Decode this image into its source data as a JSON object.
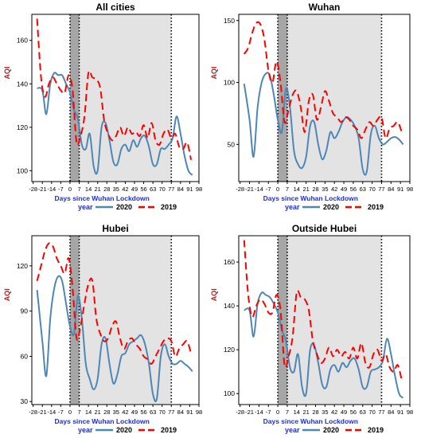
{
  "colors": {
    "series_2020": "#4e86b6",
    "series_2019": "#ff0000",
    "ylabel": "#b22222",
    "xlabel": "#1f2fd8",
    "shade_light": "#e3e3e3",
    "shade_dark": "#a6a6a6"
  },
  "legend": {
    "title": "year",
    "entries": [
      "2020",
      "2019"
    ]
  },
  "chart_data": [
    {
      "type": "line",
      "title": "All cities",
      "xlabel": "Days since  Wuhan Lockdown",
      "ylabel": "AQI",
      "xlim": [
        -29,
        98
      ],
      "ylim": [
        95,
        172
      ],
      "x_ticks": [
        -28,
        -21,
        -14,
        -7,
        0,
        7,
        14,
        21,
        28,
        35,
        42,
        49,
        56,
        63,
        70,
        77,
        84,
        91,
        98
      ],
      "y_ticks": [
        100,
        120,
        140,
        160
      ],
      "shaded_lockdown": [
        0,
        77
      ],
      "shaded_early": [
        0,
        7
      ],
      "vlines_dotted": [
        0,
        7,
        77
      ],
      "grid": false,
      "legend_position": "bottom",
      "series": [
        {
          "name": "2020",
          "x": [
            -25,
            -21,
            -18,
            -15,
            -12,
            -9,
            -6,
            -3,
            0,
            3,
            6,
            9,
            12,
            15,
            18,
            21,
            24,
            27,
            30,
            33,
            36,
            39,
            42,
            45,
            48,
            51,
            54,
            57,
            60,
            63,
            66,
            69,
            72,
            75,
            78,
            81,
            84,
            87,
            90,
            93
          ],
          "y": [
            138,
            137,
            126,
            140,
            145,
            144,
            144,
            140,
            136,
            128,
            124,
            112,
            110,
            117,
            102,
            100,
            120,
            122,
            114,
            104,
            103,
            110,
            112,
            109,
            114,
            111,
            115,
            116,
            111,
            103,
            103,
            110,
            110,
            112,
            115,
            125,
            117,
            107,
            100,
            98
          ]
        },
        {
          "name": "2019",
          "x": [
            -25,
            -22,
            -19,
            -16,
            -13,
            -10,
            -7,
            -4,
            -1,
            2,
            5,
            8,
            11,
            14,
            17,
            20,
            23,
            26,
            29,
            32,
            35,
            38,
            41,
            44,
            47,
            50,
            53,
            56,
            59,
            62,
            65,
            68,
            71,
            74,
            77,
            80,
            83,
            86,
            89,
            92
          ],
          "y": [
            170,
            143,
            134,
            140,
            143,
            140,
            137,
            136,
            144,
            137,
            113,
            116,
            125,
            145,
            143,
            142,
            138,
            123,
            117,
            114,
            116,
            120,
            116,
            120,
            117,
            118,
            116,
            121,
            115,
            122,
            114,
            112,
            117,
            119,
            115,
            117,
            111,
            110,
            113,
            105
          ]
        }
      ]
    },
    {
      "type": "line",
      "title": "Wuhan",
      "xlabel": "Days since  Wuhan Lockdown",
      "ylabel": "AQI",
      "xlim": [
        -29,
        98
      ],
      "ylim": [
        20,
        155
      ],
      "x_ticks": [
        -28,
        -21,
        -14,
        -7,
        0,
        7,
        14,
        21,
        28,
        35,
        42,
        49,
        56,
        63,
        70,
        77,
        84,
        91,
        98
      ],
      "y_ticks": [
        50,
        100,
        150
      ],
      "shaded_lockdown": [
        0,
        77
      ],
      "shaded_early": [
        0,
        7
      ],
      "vlines_dotted": [
        0,
        7,
        77
      ],
      "grid": false,
      "legend_position": "bottom",
      "series": [
        {
          "name": "2020",
          "x": [
            -25,
            -21,
            -18,
            -15,
            -12,
            -9,
            -6,
            -3,
            0,
            3,
            6,
            9,
            12,
            15,
            18,
            21,
            24,
            27,
            30,
            33,
            36,
            39,
            42,
            45,
            48,
            51,
            54,
            57,
            60,
            63,
            66,
            69,
            72,
            75,
            78,
            81,
            84,
            87,
            90,
            93
          ],
          "y": [
            99,
            70,
            40,
            80,
            100,
            107,
            106,
            90,
            70,
            60,
            95,
            80,
            45,
            34,
            31,
            40,
            65,
            68,
            50,
            38,
            45,
            60,
            55,
            60,
            68,
            72,
            70,
            65,
            55,
            30,
            28,
            58,
            65,
            55,
            50,
            52,
            55,
            56,
            54,
            50
          ]
        },
        {
          "name": "2019",
          "x": [
            -25,
            -22,
            -19,
            -16,
            -13,
            -10,
            -7,
            -4,
            -1,
            2,
            5,
            8,
            11,
            14,
            17,
            20,
            23,
            26,
            29,
            32,
            35,
            38,
            41,
            44,
            47,
            50,
            53,
            56,
            59,
            62,
            65,
            68,
            71,
            74,
            77,
            80,
            83,
            86,
            89,
            92
          ],
          "y": [
            123,
            128,
            140,
            148,
            147,
            135,
            110,
            100,
            117,
            100,
            68,
            78,
            90,
            93,
            80,
            60,
            85,
            90,
            70,
            80,
            93,
            85,
            75,
            72,
            68,
            72,
            70,
            65,
            62,
            55,
            62,
            68,
            65,
            70,
            72,
            55,
            63,
            65,
            68,
            60
          ]
        }
      ]
    },
    {
      "type": "line",
      "title": "Hubei",
      "xlabel": "Days since  Wuhan Lockdown",
      "ylabel": "AQI",
      "xlim": [
        -29,
        98
      ],
      "ylim": [
        28,
        140
      ],
      "x_ticks": [
        -28,
        -21,
        -14,
        -7,
        0,
        7,
        14,
        21,
        28,
        35,
        42,
        49,
        56,
        63,
        70,
        77,
        84,
        91,
        98
      ],
      "y_ticks": [
        30,
        60,
        90,
        120
      ],
      "shaded_lockdown": [
        0,
        77
      ],
      "shaded_early": [
        0,
        7
      ],
      "vlines_dotted": [
        0,
        7,
        77
      ],
      "grid": false,
      "legend_position": "bottom",
      "series": [
        {
          "name": "2020",
          "x": [
            -25,
            -21,
            -18,
            -15,
            -12,
            -9,
            -6,
            -3,
            0,
            3,
            6,
            9,
            12,
            15,
            18,
            21,
            24,
            27,
            30,
            33,
            36,
            39,
            42,
            45,
            48,
            51,
            54,
            57,
            60,
            63,
            66,
            69,
            72,
            75,
            78,
            81,
            84,
            87,
            90,
            93
          ],
          "y": [
            104,
            70,
            47,
            85,
            105,
            113,
            110,
            95,
            80,
            75,
            100,
            85,
            55,
            45,
            38,
            45,
            68,
            72,
            55,
            42,
            48,
            60,
            62,
            68,
            70,
            72,
            74,
            68,
            55,
            35,
            32,
            60,
            68,
            60,
            55,
            55,
            57,
            55,
            53,
            50
          ]
        },
        {
          "name": "2019",
          "x": [
            -25,
            -22,
            -19,
            -16,
            -13,
            -10,
            -7,
            -4,
            -1,
            2,
            5,
            8,
            11,
            14,
            17,
            20,
            23,
            26,
            29,
            32,
            35,
            38,
            41,
            44,
            47,
            50,
            53,
            56,
            59,
            62,
            65,
            68,
            71,
            74,
            77,
            80,
            83,
            86,
            89,
            92
          ],
          "y": [
            110,
            120,
            130,
            135,
            133,
            125,
            120,
            115,
            125,
            105,
            72,
            80,
            95,
            108,
            110,
            85,
            75,
            70,
            72,
            80,
            83,
            72,
            65,
            70,
            72,
            68,
            65,
            60,
            58,
            55,
            60,
            65,
            70,
            72,
            70,
            60,
            65,
            68,
            70,
            62
          ]
        }
      ]
    },
    {
      "type": "line",
      "title": "Outside Hubei",
      "xlabel": "Days since  Wuhan Lockdown",
      "ylabel": "AQI",
      "xlim": [
        -29,
        98
      ],
      "ylim": [
        95,
        172
      ],
      "x_ticks": [
        -28,
        -21,
        -14,
        -7,
        0,
        7,
        14,
        21,
        28,
        35,
        42,
        49,
        56,
        63,
        70,
        77,
        84,
        91,
        98
      ],
      "y_ticks": [
        100,
        120,
        140,
        160
      ],
      "shaded_lockdown": [
        0,
        77
      ],
      "shaded_early": [
        0,
        7
      ],
      "vlines_dotted": [
        0,
        7,
        77
      ],
      "grid": false,
      "legend_position": "bottom",
      "series": [
        {
          "name": "2020",
          "x": [
            -25,
            -21,
            -18,
            -15,
            -12,
            -9,
            -6,
            -3,
            0,
            3,
            6,
            9,
            12,
            15,
            18,
            21,
            24,
            27,
            30,
            33,
            36,
            39,
            42,
            45,
            48,
            51,
            54,
            57,
            60,
            63,
            66,
            69,
            72,
            75,
            78,
            81,
            84,
            87,
            90,
            93
          ],
          "y": [
            138,
            138,
            126,
            141,
            146,
            145,
            144,
            141,
            137,
            129,
            124,
            112,
            110,
            118,
            103,
            100,
            120,
            122,
            114,
            104,
            103,
            111,
            113,
            110,
            114,
            112,
            115,
            116,
            111,
            103,
            103,
            110,
            111,
            112,
            115,
            125,
            118,
            108,
            100,
            98
          ]
        },
        {
          "name": "2019",
          "x": [
            -25,
            -22,
            -19,
            -16,
            -13,
            -10,
            -7,
            -4,
            -1,
            2,
            5,
            8,
            11,
            14,
            17,
            20,
            23,
            26,
            29,
            32,
            35,
            38,
            41,
            44,
            47,
            50,
            53,
            56,
            59,
            62,
            65,
            68,
            71,
            74,
            77,
            80,
            83,
            86,
            89,
            92
          ],
          "y": [
            170,
            145,
            135,
            140,
            143,
            141,
            137,
            137,
            145,
            138,
            113,
            117,
            126,
            146,
            144,
            143,
            138,
            124,
            118,
            114,
            116,
            121,
            117,
            120,
            117,
            119,
            116,
            121,
            116,
            123,
            114,
            112,
            118,
            120,
            115,
            118,
            112,
            110,
            113,
            106
          ]
        }
      ]
    }
  ]
}
